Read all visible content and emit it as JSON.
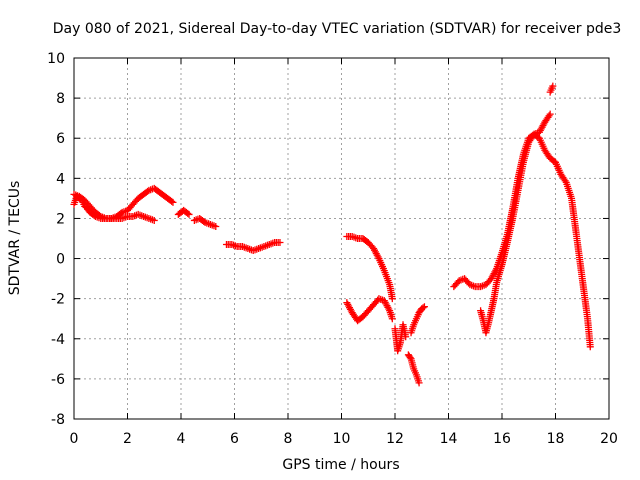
{
  "chart_data": {
    "type": "scatter",
    "title": "Day 080 of 2021, Sidereal Day-to-day VTEC variation (SDTVAR) for receiver pde3",
    "xlabel": "GPS time / hours",
    "ylabel": "SDTVAR / TECUs",
    "xlim": [
      0,
      20
    ],
    "ylim": [
      -8,
      10
    ],
    "xticks": [
      0,
      2,
      4,
      6,
      8,
      10,
      12,
      14,
      16,
      18,
      20
    ],
    "yticks": [
      -8,
      -6,
      -4,
      -2,
      0,
      2,
      4,
      6,
      8,
      10
    ],
    "grid": true,
    "marker": "+",
    "color": "#ff0000",
    "series": [
      {
        "name": "SDTVAR",
        "segments": [
          [
            [
              0.0,
              2.7
            ],
            [
              0.1,
              3.1
            ],
            [
              0.2,
              3.0
            ],
            [
              0.3,
              2.9
            ],
            [
              0.4,
              2.6
            ],
            [
              0.5,
              2.5
            ],
            [
              0.6,
              2.3
            ],
            [
              0.8,
              2.1
            ],
            [
              1.0,
              2.0
            ],
            [
              1.2,
              2.0
            ],
            [
              1.4,
              2.0
            ],
            [
              1.6,
              2.1
            ],
            [
              1.8,
              2.3
            ],
            [
              2.0,
              2.4
            ],
            [
              2.2,
              2.7
            ],
            [
              2.4,
              3.0
            ],
            [
              2.6,
              3.2
            ],
            [
              2.8,
              3.4
            ],
            [
              3.0,
              3.5
            ],
            [
              3.2,
              3.3
            ],
            [
              3.4,
              3.1
            ],
            [
              3.6,
              2.9
            ],
            [
              3.7,
              2.8
            ]
          ],
          [
            [
              0.0,
              3.2
            ],
            [
              0.2,
              3.1
            ],
            [
              0.4,
              2.9
            ],
            [
              0.6,
              2.6
            ],
            [
              0.8,
              2.3
            ],
            [
              1.0,
              2.1
            ],
            [
              1.2,
              2.0
            ],
            [
              1.4,
              2.0
            ],
            [
              1.6,
              2.0
            ],
            [
              1.8,
              2.0
            ],
            [
              2.0,
              2.1
            ],
            [
              2.2,
              2.1
            ],
            [
              2.4,
              2.2
            ],
            [
              2.6,
              2.1
            ],
            [
              2.8,
              2.0
            ],
            [
              3.0,
              1.9
            ]
          ],
          [
            [
              3.9,
              2.2
            ],
            [
              4.1,
              2.4
            ],
            [
              4.3,
              2.2
            ]
          ],
          [
            [
              4.5,
              1.9
            ],
            [
              4.7,
              2.0
            ],
            [
              4.9,
              1.8
            ],
            [
              5.1,
              1.7
            ],
            [
              5.3,
              1.6
            ]
          ],
          [
            [
              5.7,
              0.7
            ],
            [
              5.9,
              0.7
            ],
            [
              6.1,
              0.6
            ],
            [
              6.3,
              0.6
            ],
            [
              6.5,
              0.5
            ],
            [
              6.7,
              0.4
            ],
            [
              6.9,
              0.5
            ],
            [
              7.1,
              0.6
            ],
            [
              7.3,
              0.7
            ],
            [
              7.5,
              0.8
            ],
            [
              7.7,
              0.8
            ]
          ],
          [
            [
              10.2,
              1.1
            ],
            [
              10.4,
              1.1
            ],
            [
              10.6,
              1.0
            ],
            [
              10.8,
              1.0
            ],
            [
              11.0,
              0.8
            ],
            [
              11.2,
              0.5
            ],
            [
              11.4,
              0.0
            ],
            [
              11.6,
              -0.6
            ],
            [
              11.8,
              -1.3
            ],
            [
              11.9,
              -2.0
            ]
          ],
          [
            [
              10.2,
              -2.2
            ],
            [
              10.4,
              -2.7
            ],
            [
              10.6,
              -3.1
            ],
            [
              10.8,
              -2.9
            ],
            [
              11.0,
              -2.6
            ],
            [
              11.2,
              -2.3
            ],
            [
              11.4,
              -2.0
            ],
            [
              11.6,
              -2.1
            ],
            [
              11.8,
              -2.6
            ],
            [
              11.9,
              -3.0
            ]
          ],
          [
            [
              12.0,
              -3.5
            ],
            [
              12.1,
              -4.6
            ],
            [
              12.2,
              -4.2
            ],
            [
              12.3,
              -3.3
            ],
            [
              12.4,
              -3.9
            ]
          ],
          [
            [
              12.5,
              -4.8
            ],
            [
              12.6,
              -5.0
            ],
            [
              12.7,
              -5.5
            ],
            [
              12.8,
              -5.8
            ],
            [
              12.9,
              -6.2
            ]
          ],
          [
            [
              12.6,
              -3.7
            ],
            [
              12.7,
              -3.3
            ],
            [
              12.8,
              -3.0
            ],
            [
              12.9,
              -2.7
            ],
            [
              13.0,
              -2.5
            ],
            [
              13.1,
              -2.4
            ]
          ],
          [
            [
              14.2,
              -1.4
            ],
            [
              14.4,
              -1.1
            ],
            [
              14.6,
              -1.0
            ],
            [
              14.8,
              -1.3
            ],
            [
              15.0,
              -1.4
            ],
            [
              15.2,
              -1.4
            ],
            [
              15.4,
              -1.3
            ],
            [
              15.6,
              -1.0
            ],
            [
              15.8,
              -0.5
            ],
            [
              16.0,
              0.3
            ],
            [
              16.2,
              1.2
            ],
            [
              16.4,
              2.5
            ],
            [
              16.6,
              4.0
            ],
            [
              16.8,
              5.2
            ],
            [
              17.0,
              6.0
            ],
            [
              17.2,
              6.2
            ],
            [
              17.4,
              6.3
            ],
            [
              17.6,
              6.8
            ],
            [
              17.8,
              7.2
            ]
          ],
          [
            [
              15.2,
              -2.6
            ],
            [
              15.3,
              -3.1
            ],
            [
              15.4,
              -3.7
            ],
            [
              15.5,
              -3.2
            ],
            [
              15.6,
              -2.6
            ],
            [
              15.7,
              -2.0
            ],
            [
              15.8,
              -1.2
            ],
            [
              16.0,
              -0.3
            ],
            [
              16.2,
              0.8
            ],
            [
              16.4,
              2.0
            ],
            [
              16.6,
              3.4
            ],
            [
              16.8,
              4.8
            ],
            [
              17.0,
              5.8
            ],
            [
              17.2,
              6.2
            ],
            [
              17.4,
              6.0
            ],
            [
              17.6,
              5.4
            ],
            [
              17.8,
              5.0
            ],
            [
              18.0,
              4.8
            ],
            [
              18.2,
              4.2
            ],
            [
              18.4,
              3.8
            ],
            [
              18.6,
              3.0
            ],
            [
              18.8,
              1.0
            ],
            [
              19.0,
              -1.0
            ],
            [
              19.2,
              -3.0
            ],
            [
              19.3,
              -4.4
            ]
          ],
          [
            [
              17.8,
              8.3
            ],
            [
              17.9,
              8.6
            ]
          ]
        ]
      }
    ]
  }
}
